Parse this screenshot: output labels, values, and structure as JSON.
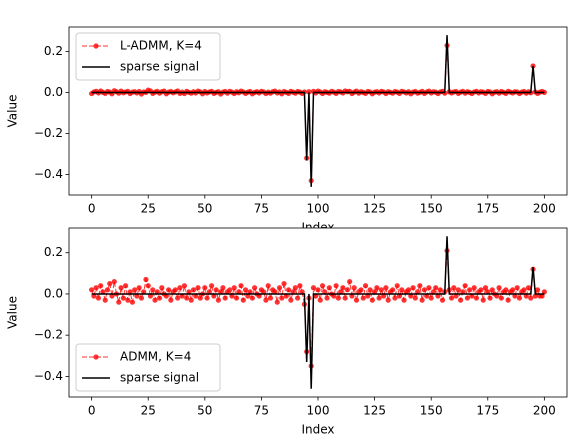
{
  "chart_data": [
    {
      "type": "line",
      "xlabel": "Index",
      "ylabel": "Value",
      "xlim": [
        -10,
        210
      ],
      "ylim": [
        -0.5,
        0.32
      ],
      "xticks": [
        0,
        25,
        50,
        75,
        100,
        125,
        150,
        175,
        200
      ],
      "yticks": [
        0.2,
        {
          "value": 0,
          "label": "0.0"
        },
        {
          "value": -0.2,
          "label": "−0.2"
        },
        {
          "value": -0.4,
          "label": "−0.4"
        }
      ],
      "legend": "upper left",
      "series": [
        {
          "name": "L-ADMM, K=4",
          "color": "#ff0000",
          "linestyle": "dashed",
          "marker": "o",
          "values": [
            -0.005,
            0.003,
            0.006,
            -0.002,
            0.008,
            0.001,
            -0.004,
            0.005,
            0.002,
            -0.006,
            0.009,
            0.004,
            -0.003,
            0.007,
            -0.001,
            0.003,
            0.006,
            -0.005,
            0.002,
            0.004,
            -0.002,
            0.005,
            -0.007,
            0.003,
            0.001,
            0.012,
            0.008,
            -0.004,
            0.002,
            0.006,
            -0.003,
            0.004,
            0.007,
            -0.006,
            0.002,
            0.005,
            -0.001,
            0.003,
            0.008,
            -0.004,
            0.002,
            -0.005,
            0.006,
            0.001,
            -0.003,
            0.004,
            -0.002,
            0.007,
            0.003,
            -0.006,
            0.005,
            -0.002,
            0.003,
            0.006,
            -0.004,
            0.001,
            0.004,
            -0.007,
            0.002,
            0.005,
            -0.003,
            0.006,
            0.002,
            -0.005,
            0.004,
            -0.001,
            0.007,
            0.003,
            -0.004,
            0.002,
            0.005,
            -0.006,
            0.001,
            0.004,
            -0.002,
            0.006,
            0.003,
            -0.005,
            0.002,
            -0.003,
            0.004,
            0.007,
            -0.002,
            0.003,
            -0.006,
            0.005,
            0.001,
            -0.004,
            0.006,
            0.002,
            -0.003,
            0.005,
            0.002,
            -0.004,
            0.003,
            -0.32,
            0.004,
            -0.43,
            0.006,
            -0.002,
            0.007,
            0.003,
            -0.005,
            0.004,
            0.001,
            -0.003,
            0.006,
            0.002,
            -0.004,
            0.005,
            0.003,
            -0.002,
            0.008,
            0.004,
            0.006,
            -0.005,
            0.002,
            0.007,
            -0.003,
            0.004,
            0.001,
            -0.004,
            0.005,
            0.003,
            -0.006,
            0.002,
            0.004,
            -0.002,
            0.006,
            0.003,
            -0.005,
            0.004,
            0.001,
            -0.003,
            0.005,
            0.002,
            -0.004,
            0.006,
            0.003,
            -0.002,
            0.004,
            -0.006,
            0.002,
            0.005,
            -0.003,
            0.001,
            0.006,
            -0.004,
            0.003,
            0.007,
            -0.002,
            0.004,
            0.002,
            -0.005,
            0.003,
            0.006,
            -0.003,
            0.23,
            0.004,
            -0.002,
            0.003,
            0.005,
            -0.004,
            0.002,
            0.006,
            -0.003,
            0.004,
            0.001,
            -0.005,
            0.003,
            0.006,
            -0.002,
            0.004,
            0.002,
            -0.004,
            0.005,
            0.003,
            -0.006,
            0.002,
            0.004,
            -0.003,
            0.005,
            0.001,
            -0.004,
            0.006,
            0.002,
            -0.002,
            0.004,
            0.003,
            -0.005,
            0.002,
            0.005,
            -0.003,
            0.004,
            -0.001,
            0.13,
            0.003,
            -0.004,
            0.002,
            0.005,
            0.001
          ]
        },
        {
          "name": "sparse signal",
          "color": "#000000",
          "linestyle": "solid",
          "x": [
            0,
            94,
            95,
            96,
            97,
            98,
            156,
            157,
            158,
            194,
            195,
            196,
            200
          ],
          "values": [
            0,
            0,
            -0.33,
            0,
            -0.46,
            0,
            0,
            0.28,
            0,
            0,
            0.13,
            0,
            0
          ]
        }
      ]
    },
    {
      "type": "line",
      "xlabel": "Index",
      "ylabel": "Value",
      "xlim": [
        -10,
        210
      ],
      "ylim": [
        -0.5,
        0.32
      ],
      "xticks": [
        0,
        25,
        50,
        75,
        100,
        125,
        150,
        175,
        200
      ],
      "yticks": [
        0.2,
        {
          "value": 0,
          "label": "0.0"
        },
        {
          "value": -0.2,
          "label": "−0.2"
        },
        {
          "value": -0.4,
          "label": "−0.4"
        }
      ],
      "legend": "lower left",
      "series": [
        {
          "name": "ADMM, K=4",
          "color": "#ff0000",
          "linestyle": "dashed",
          "marker": "o",
          "values": [
            0.02,
            -0.01,
            0.03,
            -0.02,
            0.04,
            0.01,
            -0.03,
            0.02,
            0.05,
            -0.01,
            0.06,
            0,
            -0.04,
            0.03,
            -0.02,
            0.04,
            -0.03,
            0.01,
            -0.04,
            0.02,
            -0.01,
            0.03,
            -0.02,
            0.01,
            0.07,
            0.04,
            -0.01,
            0.02,
            -0.03,
            0.01,
            -0.02,
            0.03,
            0,
            -0.01,
            0.02,
            -0.03,
            0.01,
            0.02,
            -0.02,
            0.03,
            -0.01,
            0.04,
            -0.02,
            0.01,
            -0.03,
            0.02,
            -0.01,
            0.03,
            -0.02,
            0,
            0.03,
            -0.02,
            0.01,
            0.04,
            -0.01,
            0.02,
            -0.03,
            0.01,
            0.03,
            -0.02,
            0.01,
            0.02,
            -0.01,
            0.03,
            -0.02,
            0.01,
            0.04,
            -0.03,
            0.02,
            -0.01,
            0.01,
            -0.02,
            0.03,
            0,
            -0.01,
            0.02,
            0.01,
            -0.03,
            0.04,
            -0.02,
            0.02,
            0.01,
            -0.04,
            0.03,
            -0.02,
            0.05,
            -0.01,
            0.02,
            -0.03,
            0.01,
            0.03,
            -0.02,
            0.04,
            0.01,
            -0.05,
            -0.28,
            -0.02,
            -0.35,
            0.03,
            -0.01,
            0.02,
            -0.03,
            0.04,
            0.01,
            -0.02,
            0.03,
            0,
            -0.01,
            0.04,
            -0.02,
            0.01,
            0.03,
            -0.02,
            0.02,
            0.06,
            -0.01,
            0.03,
            -0.03,
            0.01,
            0.02,
            -0.02,
            0.04,
            -0.01,
            0.02,
            -0.03,
            0.01,
            0.03,
            -0.02,
            0.02,
            -0.01,
            0.03,
            -0.03,
            0.01,
            0.02,
            -0.02,
            0.04,
            -0.01,
            0.02,
            -0.03,
            0.01,
            0.02,
            -0.01,
            0.03,
            -0.02,
            0.01,
            0.04,
            -0.03,
            0.02,
            -0.01,
            0.03,
            -0.02,
            0.01,
            0.03,
            -0.01,
            0.02,
            -0.03,
            0.01,
            0.21,
            0.02,
            -0.02,
            0.03,
            -0.01,
            0.02,
            -0.03,
            0.01,
            0.04,
            -0.02,
            0.02,
            -0.01,
            0.03,
            -0.02,
            0.01,
            0.02,
            -0.03,
            0.03,
            0.01,
            -0.02,
            0.02,
            0,
            -0.01,
            0.03,
            -0.02,
            0.01,
            0.02,
            -0.03,
            0.01,
            0.02,
            -0.01,
            0.03,
            -0.02,
            0.01,
            0.02,
            -0.01,
            0.03,
            -0.02,
            0.12,
            -0.01,
            0.02,
            -0.01,
            -0.01,
            0.01
          ]
        },
        {
          "name": "sparse signal",
          "color": "#000000",
          "linestyle": "solid",
          "x": [
            0,
            94,
            95,
            96,
            97,
            98,
            156,
            157,
            158,
            194,
            195,
            196,
            200
          ],
          "values": [
            0,
            0,
            -0.33,
            0,
            -0.46,
            0,
            0,
            0.28,
            0,
            0,
            0.13,
            0,
            0
          ]
        }
      ]
    }
  ]
}
